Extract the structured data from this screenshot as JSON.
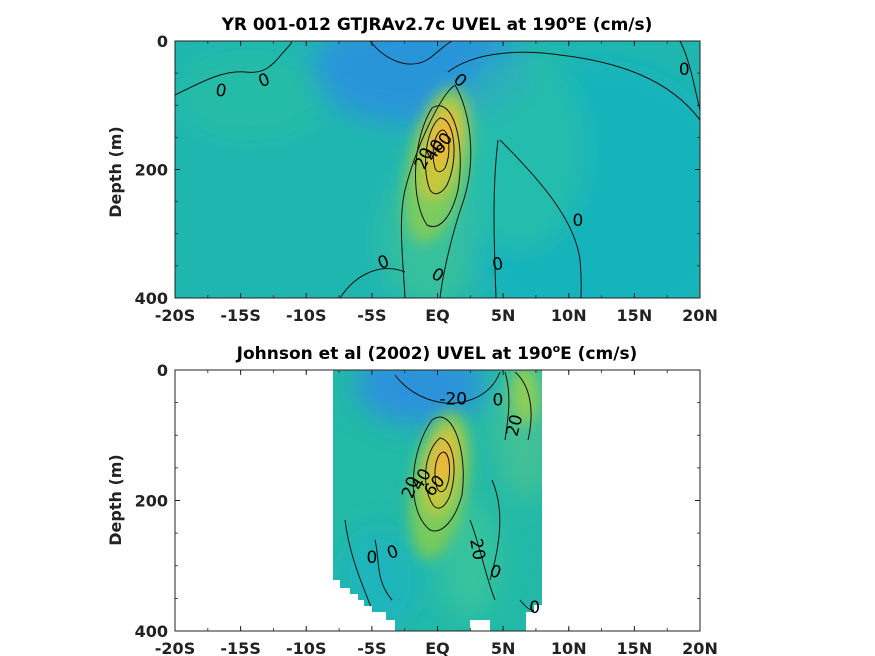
{
  "chart_data": [
    {
      "type": "heatmap",
      "title": "YR 001-012 GTJRAv2.7c UVEL at 190",
      "title_super": "o",
      "title_tail": "E (cm/s)",
      "ylabel": "Depth (m)",
      "xlim": [
        -20,
        20
      ],
      "ylim": [
        0,
        400
      ],
      "y_reversed": true,
      "x_ticks": [
        -20,
        -15,
        -10,
        -5,
        0,
        5,
        10,
        15,
        20
      ],
      "x_tick_labels": [
        "-20S",
        "-15S",
        "-10S",
        "-5S",
        "EQ",
        "5N",
        "10N",
        "15N",
        "20N"
      ],
      "y_ticks": [
        0,
        200,
        400
      ],
      "y_tick_labels": [
        "0",
        "200",
        "400"
      ],
      "data_extent": [
        -20,
        20
      ],
      "contour_labels": [
        {
          "text": "0",
          "x": -13.2,
          "y": 62,
          "rot": -20
        },
        {
          "text": "0",
          "x": -16.5,
          "y": 78,
          "rot": 10
        },
        {
          "text": "0",
          "x": 1.7,
          "y": 62,
          "rot": 40
        },
        {
          "text": "0",
          "x": 18.8,
          "y": 45,
          "rot": 0
        },
        {
          "text": "0",
          "x": 10.7,
          "y": 280,
          "rot": 0
        },
        {
          "text": "0",
          "x": -4.1,
          "y": 345,
          "rot": -20
        },
        {
          "text": "0",
          "x": 0.0,
          "y": 365,
          "rot": 30
        },
        {
          "text": "0",
          "x": 4.6,
          "y": 348,
          "rot": -10
        },
        {
          "text": "20",
          "x": -1.0,
          "y": 183,
          "rot": -65
        },
        {
          "text": "40",
          "x": -0.2,
          "y": 170,
          "rot": -60
        },
        {
          "text": "60",
          "x": 0.4,
          "y": 160,
          "rot": -55
        }
      ]
    },
    {
      "type": "heatmap",
      "title": "Johnson et al (2002) UVEL at 190",
      "title_super": "o",
      "title_tail": "E (cm/s)",
      "ylabel": "Depth (m)",
      "xlim": [
        -20,
        20
      ],
      "ylim": [
        0,
        400
      ],
      "y_reversed": true,
      "x_ticks": [
        -20,
        -15,
        -10,
        -5,
        0,
        5,
        10,
        15,
        20
      ],
      "x_tick_labels": [
        "-20S",
        "-15S",
        "-10S",
        "-5S",
        "EQ",
        "5N",
        "10N",
        "15N",
        "20N"
      ],
      "y_ticks": [
        0,
        200,
        400
      ],
      "y_tick_labels": [
        "0",
        "200",
        "400"
      ],
      "data_extent": [
        -8,
        8
      ],
      "contour_labels": [
        {
          "text": "-20",
          "x": 1.2,
          "y": 45,
          "rot": 0
        },
        {
          "text": "0",
          "x": 4.6,
          "y": 47,
          "rot": 0
        },
        {
          "text": "20",
          "x": 5.9,
          "y": 85,
          "rot": -75
        },
        {
          "text": "20",
          "x": -2.0,
          "y": 180,
          "rot": -70
        },
        {
          "text": "40",
          "x": -1.2,
          "y": 168,
          "rot": -60
        },
        {
          "text": "60",
          "x": -0.2,
          "y": 178,
          "rot": -50
        },
        {
          "text": "0",
          "x": -5.0,
          "y": 288,
          "rot": 0
        },
        {
          "text": "0",
          "x": -3.4,
          "y": 280,
          "rot": -20
        },
        {
          "text": "20",
          "x": 3.0,
          "y": 275,
          "rot": 80
        },
        {
          "text": "0",
          "x": 4.4,
          "y": 310,
          "rot": 20
        },
        {
          "text": "0",
          "x": 7.4,
          "y": 365,
          "rot": 0
        }
      ]
    }
  ]
}
